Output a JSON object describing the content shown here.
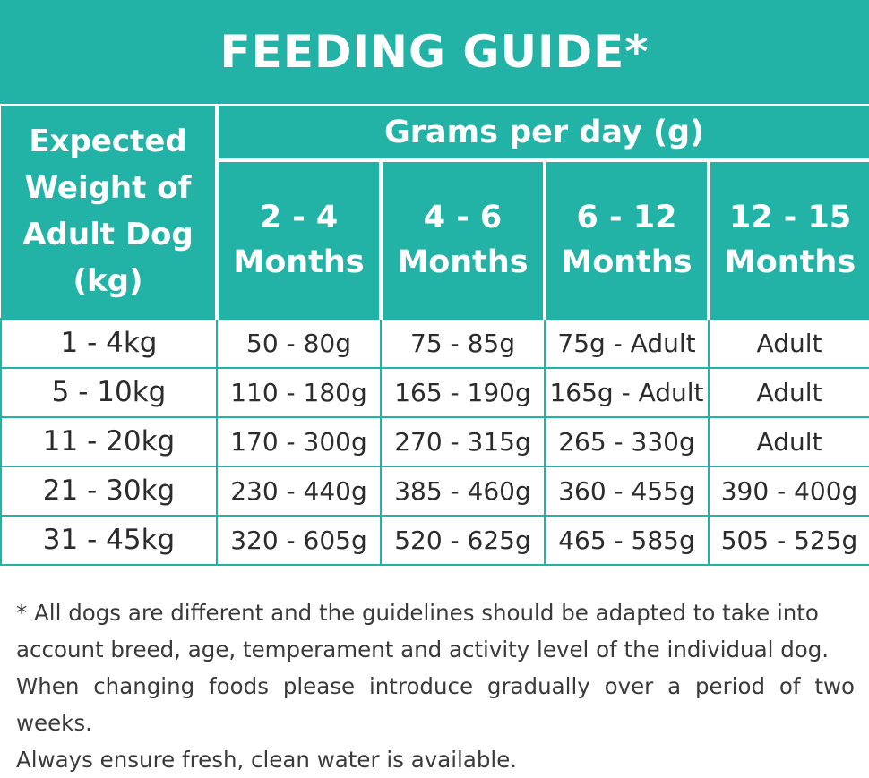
{
  "title": "FEEDING GUIDE*",
  "header": {
    "weight_label_lines": [
      "Expected",
      "Weight of",
      "Adult Dog",
      "(kg)"
    ],
    "grams_label": "Grams per day (g)",
    "ages": [
      {
        "line1": "2 - 4",
        "line2": "Months"
      },
      {
        "line1": "4 - 6",
        "line2": "Months"
      },
      {
        "line1": "6 - 12",
        "line2": "Months"
      },
      {
        "line1": "12 - 15",
        "line2": "Months"
      }
    ]
  },
  "rows": [
    {
      "weight": "1 - 4kg",
      "values": [
        "50 - 80g",
        "75 - 85g",
        "75g - Adult",
        "Adult"
      ]
    },
    {
      "weight": "5 - 10kg",
      "values": [
        "110 - 180g",
        "165 - 190g",
        "165g - Adult",
        "Adult"
      ]
    },
    {
      "weight": "11 - 20kg",
      "values": [
        "170 - 300g",
        "270 - 315g",
        "265 - 330g",
        "Adult"
      ]
    },
    {
      "weight": "21 - 30kg",
      "values": [
        "230 - 440g",
        "385 - 460g",
        "360 - 455g",
        "390 - 400g"
      ]
    },
    {
      "weight": "31 - 45kg",
      "values": [
        "320 - 605g",
        "520 - 625g",
        "465 - 585g",
        "505 - 525g"
      ]
    }
  ],
  "footnote": {
    "lines": [
      "* All dogs are different and the guidelines should be adapted to take into",
      "account breed, age, temperament and activity level of the individual dog.",
      "When changing foods please introduce gradually over a period of two weeks.",
      "Always ensure fresh, clean water is available."
    ]
  },
  "colors": {
    "accent": "#23b2a6",
    "text": "#2a2a2a"
  }
}
